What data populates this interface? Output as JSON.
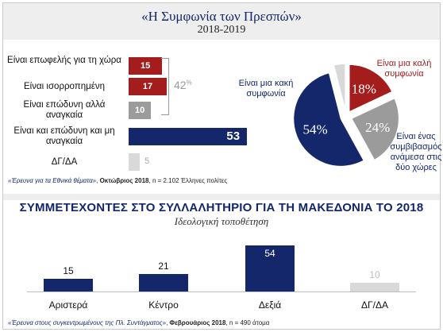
{
  "header": {
    "title": "«Η Συμφωνία των Πρεσπών»",
    "subtitle": "2018-2019"
  },
  "colors": {
    "red": "#a41d1d",
    "navy": "#13276a",
    "gray": "#9b9b9b",
    "lightgray": "#d9d9d9"
  },
  "chart_data": [
    {
      "type": "bar",
      "orientation": "horizontal",
      "categories": [
        "Είναι επωφελής για τη χώρα",
        "Είναι ισορροπημένη",
        "Είναι επώδυνη αλλά αναγκαία",
        "Είναι και επώδυνη και μη αναγκαία",
        "ΔΓ/ΔΑ"
      ],
      "values": [
        15,
        17,
        10,
        53,
        5
      ],
      "bar_colors": [
        "#a41d1d",
        "#a41d1d",
        "#9b9b9b",
        "#13276a",
        "#d9d9d9"
      ],
      "xlim": [
        0,
        55
      ],
      "annotation": {
        "text": "42",
        "suffix": "%"
      }
    },
    {
      "type": "pie",
      "slices": [
        {
          "label": "Είναι μια καλή συμφωνία",
          "value": 18,
          "text": "18%",
          "color": "#a41d1d"
        },
        {
          "label": "Είναι ένας συμβιβασμός ανάμεσα στις δύο χώρες",
          "value": 24,
          "text": "24%",
          "color": "#9b9b9b"
        },
        {
          "label": "Είναι μια κακή συμφωνία",
          "value": 54,
          "text": "54%",
          "color": "#13276a"
        },
        {
          "label": "",
          "value": 4,
          "text": "",
          "color": "#d9d9d9"
        }
      ]
    },
    {
      "type": "bar",
      "title": "ΣΥΜΜΕΤΕΧΟΝΤΕΣ ΣΤΟ ΣΥΛΛΑΛΗΤΗΡΙΟ ΓΙΑ ΤΗ ΜΑΚΕΔΟΝΙΑ ΤΟ 2018",
      "subtitle": "Ιδεολογική τοποθέτηση",
      "categories": [
        "Αριστερά",
        "Κέντρο",
        "Δεξιά",
        "ΔΓ/ΔΑ"
      ],
      "values": [
        15,
        21,
        54,
        10
      ],
      "bar_colors": [
        "#13276a",
        "#13276a",
        "#13276a",
        "#d9d9d9"
      ],
      "ylim": [
        0,
        56
      ]
    }
  ],
  "sources": {
    "top": {
      "name": "«Έρευνα για τα Εθνικά θέματα»",
      "date": "Οκτώβριος 2018",
      "sample": "n = 2.102 Έλληνες πολίτες"
    },
    "bottom": {
      "name": "«Έρευνα στους συγκεντρωμένους της Πλ. Συντάγματος»",
      "date": "Φεβρουάριος 2018",
      "sample": "n = 490 άτομα"
    }
  }
}
